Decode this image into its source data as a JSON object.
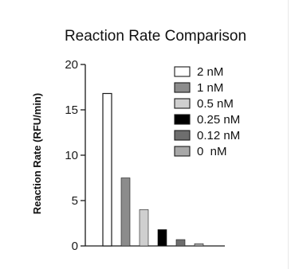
{
  "chart_data": {
    "type": "bar",
    "title": "Reaction Rate Comparison",
    "xlabel": "",
    "ylabel": "Reaction Rate (RFU/min)",
    "ylim": [
      0,
      20
    ],
    "yticks": [
      "0",
      "5",
      "10",
      "15",
      "20"
    ],
    "grid": false,
    "legend_position": "right",
    "categories": [
      "2 nM",
      "1 nM",
      "0.5 nM",
      "0.25 nM",
      "0.12 nM",
      "0  nM"
    ],
    "values": [
      16.8,
      7.5,
      4.0,
      1.8,
      0.7,
      0.25
    ],
    "colors": [
      "#ffffff",
      "#8c8c8c",
      "#cfcfcf",
      "#000000",
      "#6e6e6e",
      "#a8a8a8"
    ]
  }
}
